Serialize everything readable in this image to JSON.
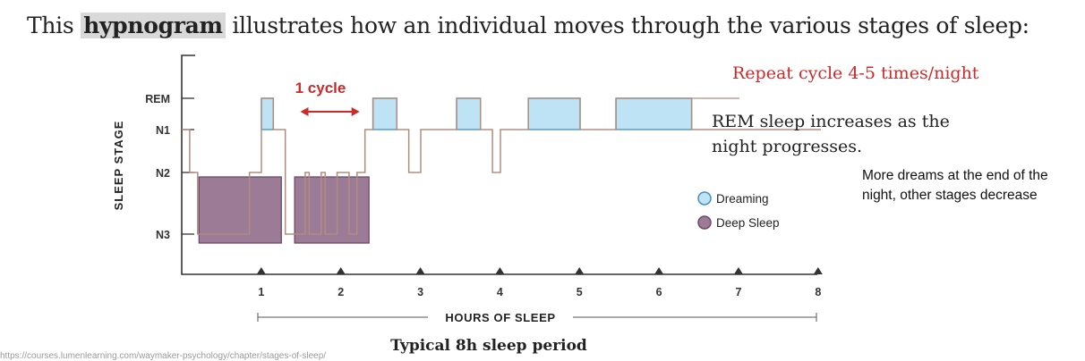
{
  "heading": {
    "prefix": "This ",
    "highlight": "hypnogram",
    "suffix": " illustrates how an individual moves through the various stages of sleep:"
  },
  "annotations": {
    "cycle_label": "1 cycle",
    "repeat": "Repeat cycle 4-5 times/night",
    "rem_line1": "REM sleep increases as the",
    "rem_line2": "night progresses.",
    "caption": "Typical 8h sleep period"
  },
  "side_note": "More dreams at the end of the night, other stages decrease",
  "source_url": "https://courses.lumenlearning.com/waymaker-psychology/chapter/stages-of-sleep/",
  "colors": {
    "accent_red": "#cc2a2a",
    "rem_fill": "#bde3f5",
    "rem_stroke": "#4a8fb8",
    "deep_fill": "#9c7b96",
    "deep_stroke": "#6e4a68",
    "line": "#b08d80"
  },
  "chart_data": {
    "type": "line",
    "title": "",
    "xlabel": "HOURS OF SLEEP",
    "ylabel": "SLEEP STAGE",
    "xlim": [
      0,
      8
    ],
    "xticks": [
      "1",
      "2",
      "3",
      "4",
      "5",
      "6",
      "7",
      "8"
    ],
    "yticks": [
      "REM",
      "N1",
      "N2",
      "N3"
    ],
    "legend": [
      {
        "name": "Dreaming",
        "color": "#bde3f5"
      },
      {
        "name": "Deep Sleep",
        "color": "#9c7b96"
      }
    ],
    "legend_position": "right",
    "hypnogram": [
      [
        0.0,
        "N1"
      ],
      [
        0.1,
        "N2"
      ],
      [
        0.2,
        "N3"
      ],
      [
        0.85,
        "N2"
      ],
      [
        1.0,
        "REM"
      ],
      [
        1.15,
        "N1"
      ],
      [
        1.3,
        "N3"
      ],
      [
        1.55,
        "N2"
      ],
      [
        1.6,
        "N3"
      ],
      [
        1.75,
        "N2"
      ],
      [
        1.8,
        "N3"
      ],
      [
        1.95,
        "N2"
      ],
      [
        2.1,
        "N3"
      ],
      [
        2.2,
        "N2"
      ],
      [
        2.3,
        "N1"
      ],
      [
        2.4,
        "REM"
      ],
      [
        2.7,
        "N1"
      ],
      [
        2.85,
        "N2"
      ],
      [
        3.0,
        "N1"
      ],
      [
        3.45,
        "REM"
      ],
      [
        3.75,
        "N1"
      ],
      [
        3.9,
        "N2"
      ],
      [
        4.0,
        "N1"
      ],
      [
        4.35,
        "REM"
      ],
      [
        5.0,
        "N1"
      ],
      [
        5.45,
        "REM"
      ],
      [
        6.4,
        "N1"
      ],
      [
        8.0,
        "N1"
      ]
    ],
    "rem_periods": [
      [
        1.0,
        1.15
      ],
      [
        2.4,
        2.7
      ],
      [
        3.45,
        3.75
      ],
      [
        4.35,
        5.0
      ],
      [
        5.45,
        6.4
      ]
    ],
    "deep_sleep_periods": [
      [
        0.15,
        1.25
      ],
      [
        1.35,
        2.35
      ]
    ],
    "cycle_span": [
      1.5,
      2.3
    ]
  }
}
